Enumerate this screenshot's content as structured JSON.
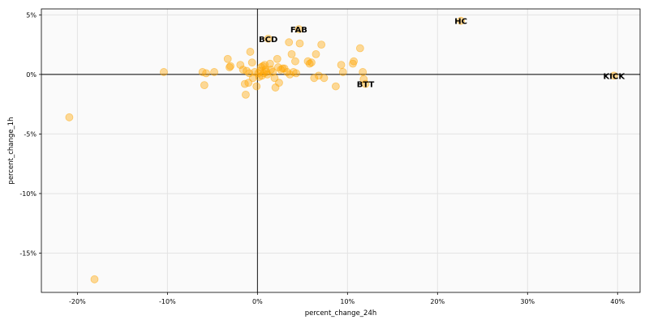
{
  "chart_data": {
    "type": "scatter",
    "title": "",
    "xlabel": "percent_change_24h",
    "ylabel": "percent_change_1h",
    "xlim": [
      -0.24,
      0.425
    ],
    "ylim": [
      -0.183,
      0.055
    ],
    "x_ticks": [
      -0.2,
      -0.1,
      0.0,
      0.1,
      0.2,
      0.3,
      0.4
    ],
    "x_tick_labels": [
      "-20%",
      "-10%",
      "0%",
      "10%",
      "20%",
      "30%",
      "40%"
    ],
    "y_ticks": [
      0.05,
      0.0,
      -0.05,
      -0.1,
      -0.15
    ],
    "y_tick_labels": [
      "5%",
      "0%",
      "-5%",
      "-10%",
      "-15%"
    ],
    "grid": true,
    "reference_lines": {
      "x": 0,
      "y": 0
    },
    "point_color": "#ffa500",
    "points": [
      {
        "x": -0.181,
        "y": -0.172
      },
      {
        "x": -0.209,
        "y": -0.036
      },
      {
        "x": -0.104,
        "y": 0.002
      },
      {
        "x": 0.226,
        "y": 0.045
      },
      {
        "x": 0.396,
        "y": -0.001
      },
      {
        "x": -0.061,
        "y": 0.002
      },
      {
        "x": -0.059,
        "y": -0.009
      },
      {
        "x": -0.057,
        "y": 0.001
      },
      {
        "x": -0.048,
        "y": 0.002
      },
      {
        "x": -0.033,
        "y": 0.013
      },
      {
        "x": -0.031,
        "y": 0.006
      },
      {
        "x": -0.03,
        "y": 0.007
      },
      {
        "x": -0.019,
        "y": 0.008
      },
      {
        "x": -0.016,
        "y": 0.004
      },
      {
        "x": -0.014,
        "y": -0.008
      },
      {
        "x": -0.013,
        "y": -0.017
      },
      {
        "x": -0.012,
        "y": 0.003
      },
      {
        "x": -0.01,
        "y": -0.007
      },
      {
        "x": -0.009,
        "y": 0.001
      },
      {
        "x": -0.008,
        "y": 0.019
      },
      {
        "x": -0.006,
        "y": 0.01
      },
      {
        "x": -0.005,
        "y": -0.003
      },
      {
        "x": -0.003,
        "y": 0.002
      },
      {
        "x": -0.001,
        "y": -0.01
      },
      {
        "x": 0.001,
        "y": 0.001
      },
      {
        "x": 0.002,
        "y": -0.002
      },
      {
        "x": 0.003,
        "y": 0.003
      },
      {
        "x": 0.004,
        "y": 0.006
      },
      {
        "x": 0.005,
        "y": -0.001
      },
      {
        "x": 0.006,
        "y": 0.007
      },
      {
        "x": 0.007,
        "y": 0.001
      },
      {
        "x": 0.008,
        "y": 0.008
      },
      {
        "x": 0.009,
        "y": 0.004
      },
      {
        "x": 0.01,
        "y": 0.002
      },
      {
        "x": 0.011,
        "y": 0.0
      },
      {
        "x": 0.012,
        "y": 0.03
      },
      {
        "x": 0.014,
        "y": 0.009
      },
      {
        "x": 0.015,
        "y": 0.004
      },
      {
        "x": 0.017,
        "y": 0.002
      },
      {
        "x": 0.019,
        "y": -0.003
      },
      {
        "x": 0.02,
        "y": -0.011
      },
      {
        "x": 0.022,
        "y": 0.013
      },
      {
        "x": 0.023,
        "y": 0.006
      },
      {
        "x": 0.024,
        "y": -0.007
      },
      {
        "x": 0.026,
        "y": 0.004
      },
      {
        "x": 0.028,
        "y": 0.005
      },
      {
        "x": 0.03,
        "y": 0.005
      },
      {
        "x": 0.033,
        "y": 0.002
      },
      {
        "x": 0.035,
        "y": 0.027
      },
      {
        "x": 0.036,
        "y": 0.0
      },
      {
        "x": 0.038,
        "y": 0.017
      },
      {
        "x": 0.04,
        "y": 0.002
      },
      {
        "x": 0.042,
        "y": 0.011
      },
      {
        "x": 0.043,
        "y": 0.001
      },
      {
        "x": 0.046,
        "y": 0.038
      },
      {
        "x": 0.047,
        "y": 0.026
      },
      {
        "x": 0.056,
        "y": 0.011
      },
      {
        "x": 0.058,
        "y": 0.009
      },
      {
        "x": 0.06,
        "y": 0.01
      },
      {
        "x": 0.063,
        "y": -0.003
      },
      {
        "x": 0.065,
        "y": 0.017
      },
      {
        "x": 0.068,
        "y": -0.001
      },
      {
        "x": 0.071,
        "y": 0.025
      },
      {
        "x": 0.074,
        "y": -0.003
      },
      {
        "x": 0.087,
        "y": -0.01
      },
      {
        "x": 0.093,
        "y": 0.008
      },
      {
        "x": 0.095,
        "y": 0.002
      },
      {
        "x": 0.106,
        "y": 0.009
      },
      {
        "x": 0.107,
        "y": 0.011
      },
      {
        "x": 0.114,
        "y": 0.022
      },
      {
        "x": 0.117,
        "y": 0.002
      },
      {
        "x": 0.118,
        "y": -0.004
      },
      {
        "x": 0.12,
        "y": -0.008
      }
    ],
    "annotations": [
      {
        "label": "HC",
        "x": 0.226,
        "y": 0.045
      },
      {
        "label": "FAB",
        "x": 0.046,
        "y": 0.038
      },
      {
        "label": "BCD",
        "x": 0.012,
        "y": 0.03
      },
      {
        "label": "KICK",
        "x": 0.396,
        "y": -0.001
      },
      {
        "label": "BTT",
        "x": 0.12,
        "y": -0.008
      }
    ]
  }
}
